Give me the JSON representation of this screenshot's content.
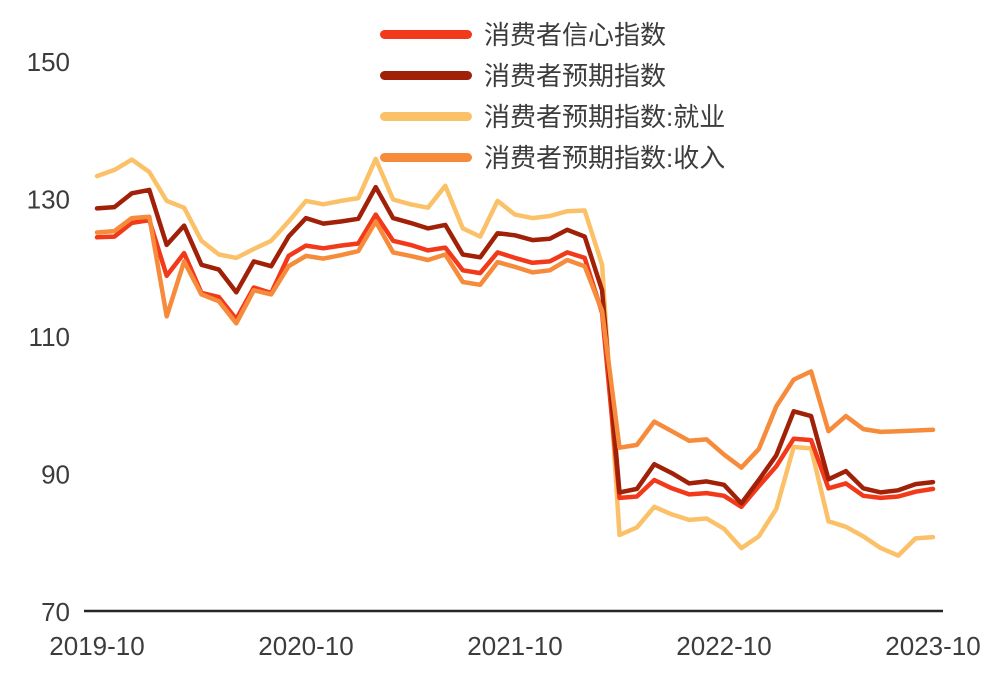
{
  "chart_data": {
    "type": "line",
    "title": "",
    "x_interval": "monthly",
    "months": [
      "2019-10",
      "2019-11",
      "2019-12",
      "2020-01",
      "2020-02",
      "2020-03",
      "2020-04",
      "2020-05",
      "2020-06",
      "2020-07",
      "2020-08",
      "2020-09",
      "2020-10",
      "2020-11",
      "2020-12",
      "2021-01",
      "2021-02",
      "2021-03",
      "2021-04",
      "2021-05",
      "2021-06",
      "2021-07",
      "2021-08",
      "2021-09",
      "2021-10",
      "2021-11",
      "2021-12",
      "2022-01",
      "2022-02",
      "2022-03",
      "2022-04",
      "2022-05",
      "2022-06",
      "2022-07",
      "2022-08",
      "2022-09",
      "2022-10",
      "2022-11",
      "2022-12",
      "2023-01",
      "2023-02",
      "2023-03",
      "2023-04",
      "2023-05",
      "2023-06",
      "2023-07",
      "2023-08",
      "2023-09",
      "2023-10"
    ],
    "series": [
      {
        "name": "消费者信心指数",
        "color": "#F2391A",
        "values": [
          124.5,
          124.6,
          126.6,
          127.0,
          118.9,
          122.2,
          116.4,
          115.8,
          112.6,
          117.2,
          116.4,
          121.8,
          123.3,
          122.9,
          123.3,
          123.6,
          127.8,
          124.0,
          123.4,
          122.6,
          123.0,
          119.7,
          119.3,
          122.3,
          121.5,
          120.8,
          121.0,
          122.3,
          121.5,
          113.5,
          86.6,
          86.8,
          89.2,
          88.0,
          87.1,
          87.3,
          86.9,
          85.3,
          88.3,
          91.2,
          95.2,
          95.0,
          88.0,
          88.7,
          86.9,
          86.6,
          86.8,
          87.5,
          87.9
        ]
      },
      {
        "name": "消费者预期指数",
        "color": "#A02108",
        "values": [
          128.7,
          128.9,
          130.9,
          131.4,
          123.4,
          126.2,
          120.5,
          119.8,
          116.5,
          121.0,
          120.3,
          124.6,
          127.3,
          126.5,
          126.8,
          127.2,
          131.8,
          127.3,
          126.6,
          125.8,
          126.3,
          122.0,
          121.6,
          125.1,
          124.8,
          124.1,
          124.3,
          125.6,
          124.6,
          116.8,
          87.4,
          87.9,
          91.5,
          90.2,
          88.7,
          89.0,
          88.5,
          85.8,
          89.2,
          92.8,
          99.2,
          98.5,
          89.3,
          90.5,
          88.0,
          87.4,
          87.7,
          88.6,
          88.9
        ]
      },
      {
        "name": "消费者预期指数:就业",
        "color": "#FBC169",
        "values": [
          133.4,
          134.3,
          135.8,
          134.0,
          129.8,
          128.8,
          124.0,
          122.0,
          121.5,
          122.8,
          124.0,
          126.8,
          129.8,
          129.3,
          129.8,
          130.2,
          135.9,
          130.0,
          129.3,
          128.8,
          132.0,
          125.8,
          124.6,
          129.8,
          127.8,
          127.3,
          127.6,
          128.3,
          128.4,
          120.5,
          81.2,
          82.3,
          85.3,
          84.2,
          83.4,
          83.6,
          82.1,
          79.3,
          81.0,
          85.0,
          94.0,
          93.8,
          83.2,
          82.4,
          81.0,
          79.3,
          78.2,
          80.7,
          80.9
        ]
      },
      {
        "name": "消费者预期指数:收入",
        "color": "#F78B3C",
        "values": [
          125.2,
          125.4,
          127.3,
          127.5,
          113.0,
          121.0,
          116.2,
          115.2,
          112.0,
          116.8,
          116.2,
          120.3,
          121.8,
          121.4,
          121.9,
          122.5,
          126.8,
          122.3,
          121.8,
          121.2,
          122.0,
          118.0,
          117.6,
          120.9,
          120.2,
          119.4,
          119.7,
          121.2,
          120.3,
          113.8,
          93.9,
          94.3,
          97.7,
          96.3,
          94.9,
          95.1,
          92.9,
          91.0,
          93.7,
          99.9,
          103.8,
          105.0,
          96.3,
          98.5,
          96.6,
          96.2,
          96.3,
          96.4,
          96.5
        ]
      }
    ],
    "yticks": [
      70,
      90,
      110,
      130,
      150
    ],
    "xticks": [
      {
        "label": "2019-10",
        "month_index": 0
      },
      {
        "label": "2020-10",
        "month_index": 12
      },
      {
        "label": "2021-10",
        "month_index": 24
      },
      {
        "label": "2022-10",
        "month_index": 36
      },
      {
        "label": "2023-10",
        "month_index": 48
      }
    ],
    "ylim": [
      70,
      150
    ],
    "grid": false,
    "legend_position": "top-center",
    "axis_color": "#262626",
    "tick_text_color": "#3c3c3c"
  }
}
